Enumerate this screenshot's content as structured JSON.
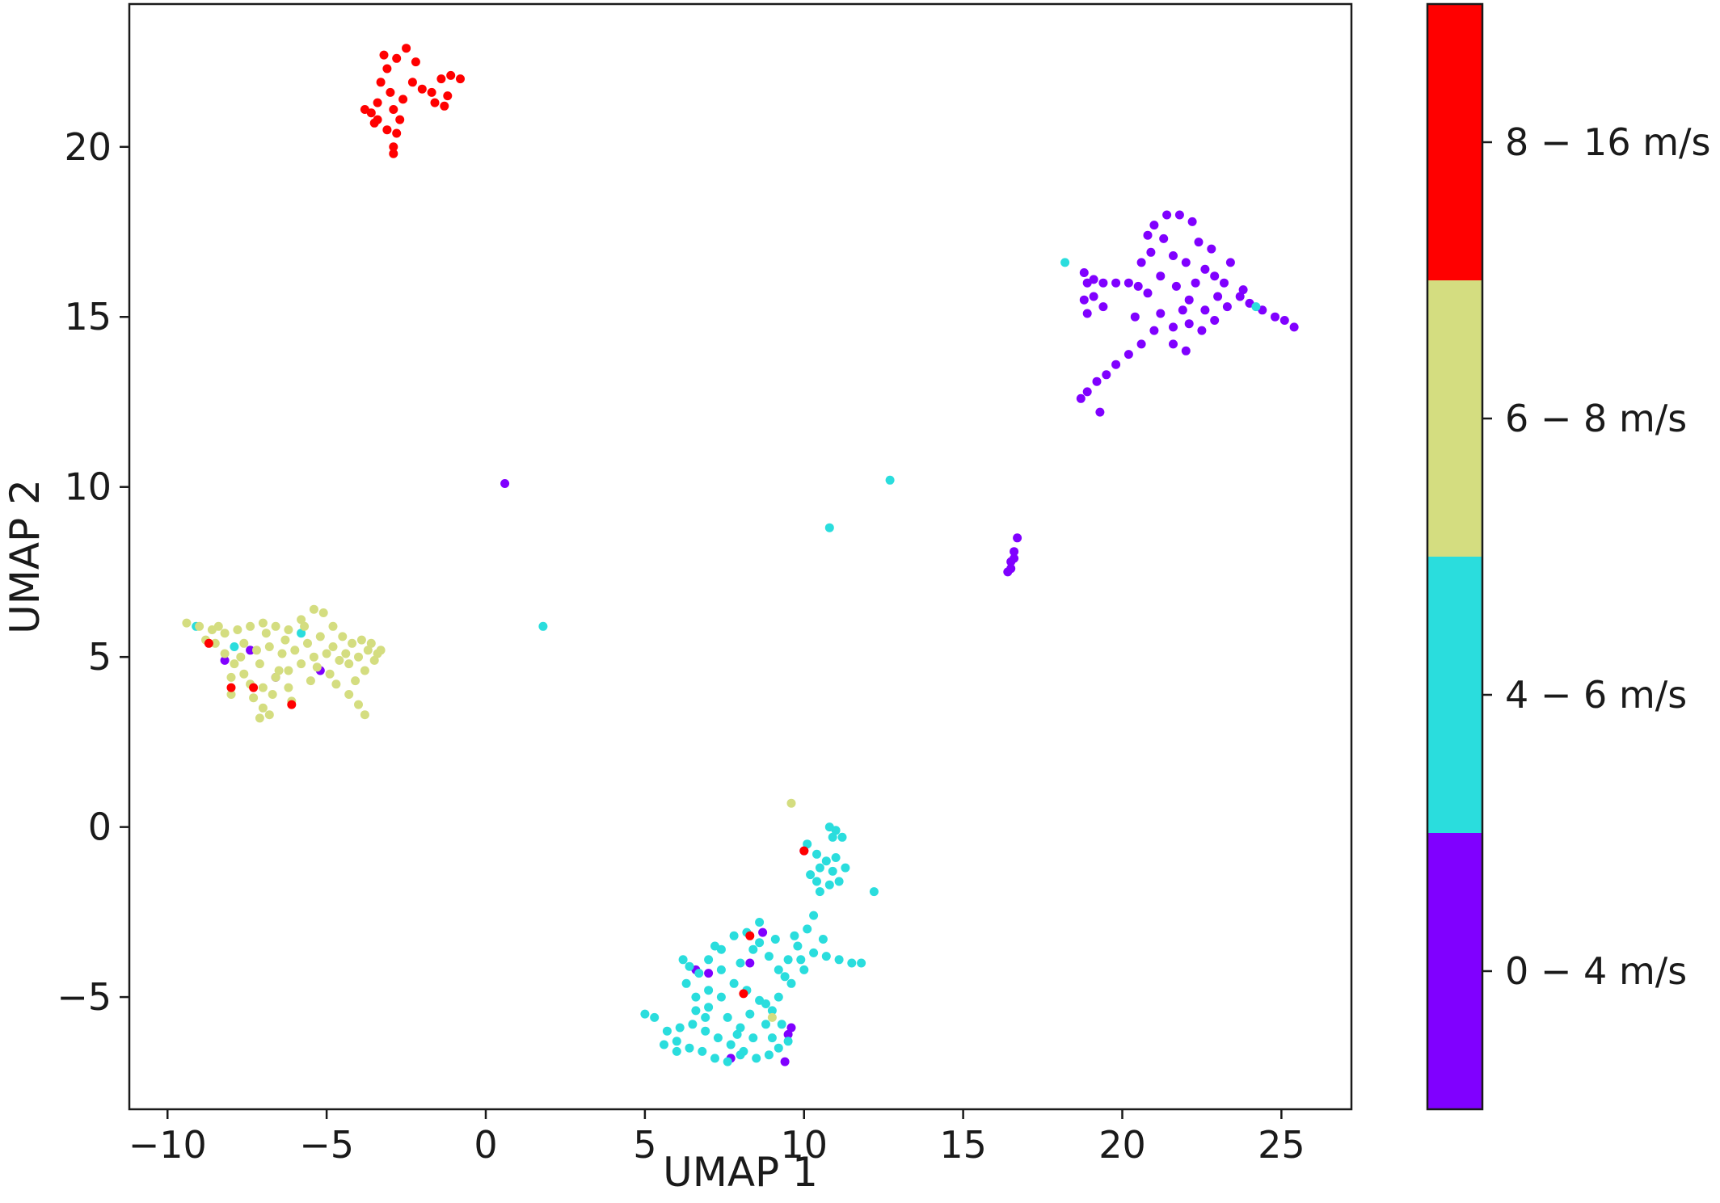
{
  "chart_data": {
    "type": "scatter",
    "title": "",
    "xlabel": "UMAP 1",
    "ylabel": "UMAP 2",
    "xlim": [
      -11.2,
      27.2
    ],
    "ylim": [
      -8.3,
      24.2
    ],
    "xticks": [
      -10,
      -5,
      0,
      5,
      10,
      15,
      20,
      25
    ],
    "xtick_labels": [
      "−10",
      "−5",
      "0",
      "5",
      "10",
      "15",
      "20",
      "25"
    ],
    "yticks": [
      -5,
      0,
      5,
      10,
      15,
      20
    ],
    "ytick_labels": [
      "−5",
      "0",
      "5",
      "10",
      "15",
      "20"
    ],
    "grid": false,
    "colorbar": {
      "categories": [
        {
          "label": "0 − 4 m/s",
          "color": "#8000ff"
        },
        {
          "label": "4 − 6 m/s",
          "color": "#2adddd"
        },
        {
          "label": "6 − 8 m/s",
          "color": "#d4dd80"
        },
        {
          "label": "8 − 16 m/s",
          "color": "#ff0000"
        }
      ]
    },
    "series": [
      {
        "label": "0 − 4 m/s",
        "color": "#8000ff",
        "points": [
          [
            21.0,
            17.7
          ],
          [
            21.4,
            18.0
          ],
          [
            21.8,
            18.0
          ],
          [
            22.2,
            17.8
          ],
          [
            22.4,
            17.2
          ],
          [
            21.3,
            17.3
          ],
          [
            20.8,
            17.4
          ],
          [
            21.6,
            16.8
          ],
          [
            22.0,
            16.6
          ],
          [
            22.6,
            16.4
          ],
          [
            22.9,
            16.2
          ],
          [
            23.2,
            16.0
          ],
          [
            23.0,
            15.6
          ],
          [
            22.6,
            15.2
          ],
          [
            22.1,
            15.5
          ],
          [
            21.7,
            15.9
          ],
          [
            21.2,
            16.2
          ],
          [
            20.8,
            15.7
          ],
          [
            21.2,
            15.1
          ],
          [
            21.6,
            14.7
          ],
          [
            22.1,
            14.8
          ],
          [
            22.5,
            14.6
          ],
          [
            22.9,
            14.9
          ],
          [
            23.3,
            15.3
          ],
          [
            23.7,
            15.6
          ],
          [
            20.6,
            16.6
          ],
          [
            20.9,
            16.9
          ],
          [
            22.8,
            17.0
          ],
          [
            23.4,
            16.6
          ],
          [
            21.0,
            14.6
          ],
          [
            20.6,
            14.2
          ],
          [
            20.2,
            13.9
          ],
          [
            19.8,
            13.6
          ],
          [
            19.5,
            13.3
          ],
          [
            19.2,
            13.1
          ],
          [
            18.9,
            12.8
          ],
          [
            18.7,
            12.6
          ],
          [
            19.3,
            12.2
          ],
          [
            21.6,
            14.2
          ],
          [
            22.0,
            14.0
          ],
          [
            18.8,
            16.3
          ],
          [
            19.1,
            16.1
          ],
          [
            19.4,
            16.0
          ],
          [
            19.8,
            16.0
          ],
          [
            20.2,
            16.0
          ],
          [
            20.5,
            15.9
          ],
          [
            18.8,
            15.5
          ],
          [
            18.9,
            15.1
          ],
          [
            19.4,
            15.3
          ],
          [
            24.0,
            15.4
          ],
          [
            24.4,
            15.2
          ],
          [
            24.8,
            15.0
          ],
          [
            25.1,
            14.9
          ],
          [
            25.4,
            14.7
          ],
          [
            23.8,
            15.8
          ],
          [
            22.3,
            16.0
          ],
          [
            21.9,
            15.2
          ],
          [
            20.4,
            15.0
          ],
          [
            19.1,
            15.6
          ],
          [
            18.9,
            16.0
          ],
          [
            0.6,
            10.1
          ],
          [
            16.7,
            8.5
          ],
          [
            16.6,
            8.1
          ],
          [
            16.5,
            7.8
          ],
          [
            16.4,
            7.5
          ],
          [
            16.5,
            7.6
          ],
          [
            16.6,
            7.9
          ],
          [
            -8.2,
            4.9
          ],
          [
            -6.6,
            4.4
          ],
          [
            -5.2,
            4.6
          ],
          [
            -7.4,
            5.2
          ],
          [
            7.0,
            -4.3
          ],
          [
            7.7,
            -6.8
          ],
          [
            9.4,
            -6.9
          ],
          [
            9.6,
            -5.9
          ],
          [
            9.5,
            -6.1
          ],
          [
            8.3,
            -4.0
          ],
          [
            10.0,
            -0.7
          ],
          [
            8.7,
            -3.1
          ],
          [
            6.6,
            -4.2
          ]
        ]
      },
      {
        "label": "4 − 6 m/s",
        "color": "#2adddd",
        "points": [
          [
            10.1,
            -0.5
          ],
          [
            10.4,
            -0.8
          ],
          [
            10.7,
            -1.0
          ],
          [
            10.9,
            -1.3
          ],
          [
            11.1,
            -1.6
          ],
          [
            10.8,
            -1.7
          ],
          [
            10.5,
            -1.2
          ],
          [
            10.2,
            -1.4
          ],
          [
            11.2,
            -0.3
          ],
          [
            10.8,
            0.0
          ],
          [
            11.0,
            -0.9
          ],
          [
            11.3,
            -1.2
          ],
          [
            10.5,
            -1.9
          ],
          [
            10.3,
            -2.6
          ],
          [
            10.1,
            -3.0
          ],
          [
            9.8,
            -3.5
          ],
          [
            9.5,
            -3.9
          ],
          [
            9.2,
            -4.2
          ],
          [
            8.9,
            -3.8
          ],
          [
            8.6,
            -3.4
          ],
          [
            8.2,
            -3.1
          ],
          [
            7.8,
            -3.2
          ],
          [
            7.4,
            -3.6
          ],
          [
            7.0,
            -3.9
          ],
          [
            6.7,
            -4.3
          ],
          [
            6.4,
            -4.1
          ],
          [
            6.3,
            -4.6
          ],
          [
            6.6,
            -5.0
          ],
          [
            7.0,
            -5.3
          ],
          [
            7.4,
            -5.0
          ],
          [
            7.8,
            -4.6
          ],
          [
            8.2,
            -4.8
          ],
          [
            8.6,
            -5.1
          ],
          [
            9.0,
            -5.4
          ],
          [
            9.3,
            -5.8
          ],
          [
            9.5,
            -6.3
          ],
          [
            9.2,
            -6.5
          ],
          [
            8.9,
            -6.7
          ],
          [
            8.5,
            -6.8
          ],
          [
            8.1,
            -6.6
          ],
          [
            7.7,
            -6.4
          ],
          [
            7.3,
            -6.2
          ],
          [
            6.9,
            -6.0
          ],
          [
            6.5,
            -5.8
          ],
          [
            6.1,
            -5.9
          ],
          [
            5.7,
            -6.0
          ],
          [
            5.3,
            -5.6
          ],
          [
            5.0,
            -5.5
          ],
          [
            5.6,
            -6.4
          ],
          [
            6.0,
            -6.3
          ],
          [
            6.4,
            -6.5
          ],
          [
            6.8,
            -6.6
          ],
          [
            7.2,
            -6.8
          ],
          [
            7.6,
            -6.9
          ],
          [
            8.0,
            -6.7
          ],
          [
            8.4,
            -6.2
          ],
          [
            8.8,
            -5.8
          ],
          [
            9.2,
            -5.0
          ],
          [
            9.6,
            -4.6
          ],
          [
            9.9,
            -3.9
          ],
          [
            10.3,
            -3.7
          ],
          [
            10.7,
            -3.8
          ],
          [
            11.1,
            -3.9
          ],
          [
            11.5,
            -4.0
          ],
          [
            11.8,
            -4.0
          ],
          [
            10.6,
            -3.3
          ],
          [
            10.0,
            -4.2
          ],
          [
            8.0,
            -4.0
          ],
          [
            7.6,
            -5.6
          ],
          [
            8.8,
            -5.2
          ],
          [
            9.0,
            -6.2
          ],
          [
            7.0,
            -4.8
          ],
          [
            8.4,
            -3.6
          ],
          [
            9.7,
            -3.2
          ],
          [
            6.2,
            -3.9
          ],
          [
            6.9,
            -5.6
          ],
          [
            7.9,
            -6.1
          ],
          [
            8.3,
            -5.5
          ],
          [
            9.4,
            -4.4
          ],
          [
            10.9,
            -0.3
          ],
          [
            12.2,
            -1.9
          ],
          [
            11.0,
            -0.1
          ],
          [
            10.4,
            -1.6
          ],
          [
            7.4,
            -4.2
          ],
          [
            6.0,
            -6.6
          ],
          [
            8.6,
            -2.8
          ],
          [
            7.2,
            -3.5
          ],
          [
            9.1,
            -3.3
          ],
          [
            8.0,
            -5.9
          ],
          [
            6.6,
            -5.4
          ],
          [
            12.7,
            10.2
          ],
          [
            10.8,
            8.8
          ],
          [
            1.8,
            5.9
          ],
          [
            18.2,
            16.6
          ],
          [
            24.2,
            15.3
          ],
          [
            -9.1,
            5.9
          ],
          [
            -5.8,
            5.7
          ],
          [
            -7.9,
            5.3
          ]
        ]
      },
      {
        "label": "6 − 8 m/s",
        "color": "#d4dd80",
        "points": [
          [
            -9.4,
            6.0
          ],
          [
            -9.0,
            5.9
          ],
          [
            -8.6,
            5.8
          ],
          [
            -8.2,
            5.7
          ],
          [
            -7.8,
            5.8
          ],
          [
            -7.4,
            5.9
          ],
          [
            -7.0,
            6.0
          ],
          [
            -6.6,
            5.9
          ],
          [
            -6.2,
            5.8
          ],
          [
            -5.8,
            6.1
          ],
          [
            -5.4,
            6.4
          ],
          [
            -5.1,
            6.3
          ],
          [
            -4.8,
            5.9
          ],
          [
            -4.5,
            5.6
          ],
          [
            -4.2,
            5.4
          ],
          [
            -3.9,
            5.5
          ],
          [
            -3.6,
            5.4
          ],
          [
            -3.3,
            5.2
          ],
          [
            -3.5,
            4.9
          ],
          [
            -3.8,
            4.6
          ],
          [
            -4.1,
            4.3
          ],
          [
            -4.3,
            3.9
          ],
          [
            -4.0,
            3.6
          ],
          [
            -3.8,
            3.3
          ],
          [
            -4.6,
            4.9
          ],
          [
            -5.0,
            5.1
          ],
          [
            -5.4,
            5.0
          ],
          [
            -5.8,
            4.8
          ],
          [
            -6.2,
            4.6
          ],
          [
            -6.6,
            4.4
          ],
          [
            -7.0,
            4.1
          ],
          [
            -7.3,
            3.8
          ],
          [
            -7.0,
            3.5
          ],
          [
            -7.1,
            3.2
          ],
          [
            -6.8,
            3.3
          ],
          [
            -7.6,
            4.5
          ],
          [
            -7.9,
            4.8
          ],
          [
            -8.2,
            5.1
          ],
          [
            -8.5,
            5.4
          ],
          [
            -8.8,
            5.5
          ],
          [
            -7.6,
            5.4
          ],
          [
            -7.2,
            5.2
          ],
          [
            -6.8,
            5.3
          ],
          [
            -6.4,
            5.1
          ],
          [
            -6.0,
            5.2
          ],
          [
            -5.6,
            5.4
          ],
          [
            -5.2,
            5.6
          ],
          [
            -4.8,
            5.3
          ],
          [
            -4.4,
            5.1
          ],
          [
            -4.0,
            5.0
          ],
          [
            -6.2,
            4.1
          ],
          [
            -6.7,
            3.9
          ],
          [
            -7.4,
            4.2
          ],
          [
            -8.0,
            4.4
          ],
          [
            -6.9,
            5.7
          ],
          [
            -5.3,
            4.7
          ],
          [
            -4.9,
            4.5
          ],
          [
            -3.7,
            5.2
          ],
          [
            -3.4,
            5.1
          ],
          [
            -8.4,
            5.9
          ],
          [
            -7.1,
            4.8
          ],
          [
            -6.5,
            4.6
          ],
          [
            -5.7,
            5.9
          ],
          [
            -4.3,
            4.8
          ],
          [
            -7.7,
            5.0
          ],
          [
            -6.3,
            5.5
          ],
          [
            -8.0,
            3.9
          ],
          [
            -6.1,
            3.7
          ],
          [
            -5.5,
            4.3
          ],
          [
            -4.7,
            4.2
          ],
          [
            9.6,
            0.7
          ],
          [
            9.0,
            -5.6
          ]
        ]
      },
      {
        "label": "8 − 16 m/s",
        "color": "#ff0000",
        "points": [
          [
            -2.5,
            22.9
          ],
          [
            -2.8,
            22.6
          ],
          [
            -3.1,
            22.3
          ],
          [
            -3.3,
            21.9
          ],
          [
            -3.0,
            21.6
          ],
          [
            -3.4,
            21.3
          ],
          [
            -3.6,
            21.0
          ],
          [
            -3.5,
            20.7
          ],
          [
            -3.1,
            20.5
          ],
          [
            -2.8,
            20.4
          ],
          [
            -2.9,
            20.0
          ],
          [
            -2.9,
            19.8
          ],
          [
            -2.7,
            20.8
          ],
          [
            -2.3,
            21.9
          ],
          [
            -2.0,
            21.7
          ],
          [
            -1.7,
            21.6
          ],
          [
            -1.4,
            22.0
          ],
          [
            -1.1,
            22.1
          ],
          [
            -0.8,
            22.0
          ],
          [
            -1.2,
            21.5
          ],
          [
            -1.3,
            21.2
          ],
          [
            -1.6,
            21.3
          ],
          [
            -2.2,
            22.5
          ],
          [
            -3.2,
            22.7
          ],
          [
            -2.9,
            21.1
          ],
          [
            -2.6,
            21.4
          ],
          [
            -3.4,
            20.8
          ],
          [
            -3.8,
            21.1
          ],
          [
            -8.7,
            5.4
          ],
          [
            -6.1,
            3.6
          ],
          [
            -8.0,
            4.1
          ],
          [
            -7.3,
            4.1
          ],
          [
            8.1,
            -4.9
          ],
          [
            10.0,
            -0.7
          ],
          [
            8.3,
            -3.2
          ]
        ]
      }
    ]
  }
}
